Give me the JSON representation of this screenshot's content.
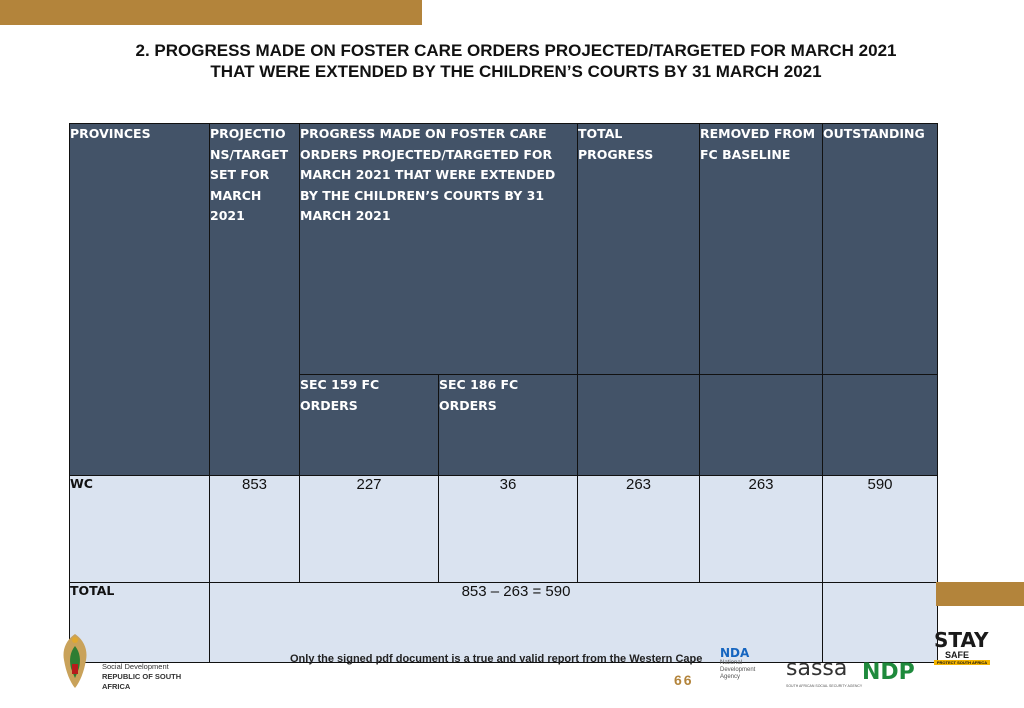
{
  "title": {
    "line1": "2. PROGRESS MADE ON FOSTER CARE ORDERS PROJECTED/TARGETED FOR MARCH 2021",
    "line2": "THAT WERE EXTENDED BY THE CHILDREN’S COURTS BY 31 MARCH 2021"
  },
  "table": {
    "headers": {
      "provinces": "PROVINCES",
      "projections": "PROJECTIO NS/TARGET SET FOR MARCH 2021",
      "progress": "PROGRESS MADE ON FOSTER CARE ORDERS PROJECTED/TARGETED FOR MARCH 2021 THAT WERE EXTENDED BY THE CHILDREN’S COURTS BY 31 MARCH 2021",
      "total_progress": "TOTAL PROGRESS",
      "removed": "REMOVED FROM FC BASELINE",
      "outstanding": "OUTSTANDING",
      "sec159": "SEC 159 FC ORDERS",
      "sec186": "SEC 186 FC ORDERS"
    },
    "rows": [
      {
        "province": "WC",
        "projections": "853",
        "sec159": "227",
        "sec186": "36",
        "total_progress": "263",
        "removed": "263",
        "outstanding": "590"
      }
    ],
    "total": {
      "label": "TOTAL",
      "formula": "853 – 263 = 590"
    }
  },
  "footer": {
    "dept_line1": "Social Development",
    "dept_line2": "REPUBLIC OF SOUTH AFRICA",
    "disclaimer": "Only the signed pdf document is a true and valid report from the Western Cape",
    "page_number": "66",
    "nda_text": "NDA",
    "nda_sub": "National Development Agency",
    "sassa": "sassa",
    "sassa_sub": "SOUTH AFRICAN SOCIAL SECURITY AGENCY",
    "ndp": "NDP",
    "stay_safe_top": "STAY",
    "stay_safe_mid": "SAFE",
    "stay_safe_tag": "PROTECT SOUTH AFRICA"
  },
  "colors": {
    "accent": "#b3843b",
    "header_bg": "#435368",
    "cell_bg": "#dae3f0"
  }
}
